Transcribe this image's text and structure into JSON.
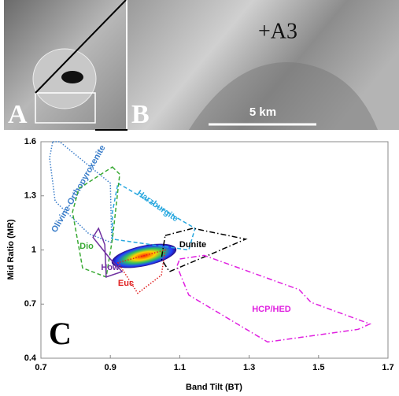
{
  "panels": {
    "a_label": "A",
    "b_label": "B",
    "b_marker": "+A3",
    "b_scale": "5 km"
  },
  "chart_data": {
    "type": "region",
    "panel_label": "C",
    "x_label": "Band Tilt (BT)",
    "y_label": "Mid Ratio (MR)",
    "xlim": [
      0.7,
      1.7
    ],
    "xticks": [
      0.7,
      0.9,
      1.1,
      1.3,
      1.5,
      1.7
    ],
    "ylim": [
      0.4,
      1.6
    ],
    "yticks": [
      0.4,
      0.7,
      1,
      1.3,
      1.6
    ],
    "series": [
      {
        "name": "Olivine-Orthopyroxenite",
        "color": "#3a7dc9",
        "dash": "dotted",
        "x": [
          0.734,
          0.754,
          0.9,
          0.904,
          0.838,
          0.741,
          0.725
        ],
        "y": [
          1.6,
          1.6,
          1.37,
          1.04,
          1.09,
          1.27,
          1.51
        ]
      },
      {
        "name": "Harzburgite",
        "color": "#29a8df",
        "dash": "dashed",
        "x": [
          0.922,
          1.144,
          1.126,
          0.906,
          0.906
        ],
        "y": [
          1.37,
          1.12,
          1.0,
          1.06,
          1.21
        ]
      },
      {
        "name": "Dio",
        "color": "#3aaa35",
        "dash": "dashed",
        "x": [
          0.906,
          0.927,
          0.906,
          0.888,
          0.82,
          0.791,
          0.809
        ],
        "y": [
          1.46,
          1.42,
          1.06,
          0.85,
          0.9,
          1.21,
          1.34
        ]
      },
      {
        "name": "How",
        "color": "#7030a0",
        "dash": "solid",
        "x": [
          0.866,
          0.884,
          0.888,
          0.934,
          0.9,
          0.85
        ],
        "y": [
          1.12,
          1.03,
          0.85,
          0.88,
          0.95,
          1.07
        ]
      },
      {
        "name": "Euc",
        "color": "#e02020",
        "dash": "dotted",
        "x": [
          0.922,
          0.979,
          1.047,
          1.058
        ],
        "y": [
          0.93,
          0.76,
          0.86,
          1.0
        ]
      },
      {
        "name": "Dunite",
        "color": "#000000",
        "dash": "dashdot",
        "x": [
          1.058,
          1.138,
          1.29,
          1.194,
          1.07,
          1.047
        ],
        "y": [
          1.08,
          1.12,
          1.06,
          0.98,
          0.88,
          0.95
        ]
      },
      {
        "name": "HCP/HED",
        "color": "#e020e0",
        "dash": "dashdot",
        "x": [
          1.1,
          1.17,
          1.444,
          1.478,
          1.648,
          1.614,
          1.353,
          1.126,
          1.092
        ],
        "y": [
          0.95,
          0.97,
          0.78,
          0.71,
          0.59,
          0.56,
          0.49,
          0.75,
          0.91
        ]
      }
    ]
  }
}
